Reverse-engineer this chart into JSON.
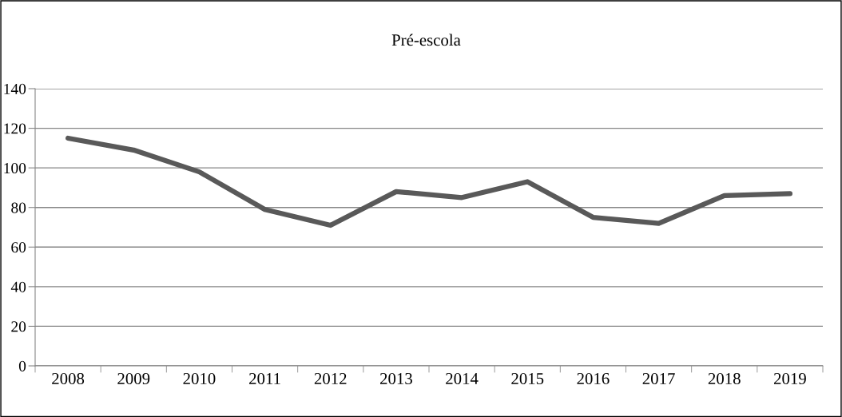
{
  "chart_data": {
    "type": "line",
    "title": "Pré-escola",
    "categories": [
      "2008",
      "2009",
      "2010",
      "2011",
      "2012",
      "2013",
      "2014",
      "2015",
      "2016",
      "2017",
      "2018",
      "2019"
    ],
    "series": [
      {
        "color": "#595959",
        "values": [
          115,
          109,
          98,
          79,
          71,
          88,
          85,
          93,
          75,
          72,
          86,
          87
        ]
      }
    ],
    "ylim": [
      0,
      140
    ],
    "yticks": [
      0,
      20,
      40,
      60,
      80,
      100,
      120,
      140
    ],
    "grid": "y",
    "marker": "none",
    "line_style": "solid"
  }
}
